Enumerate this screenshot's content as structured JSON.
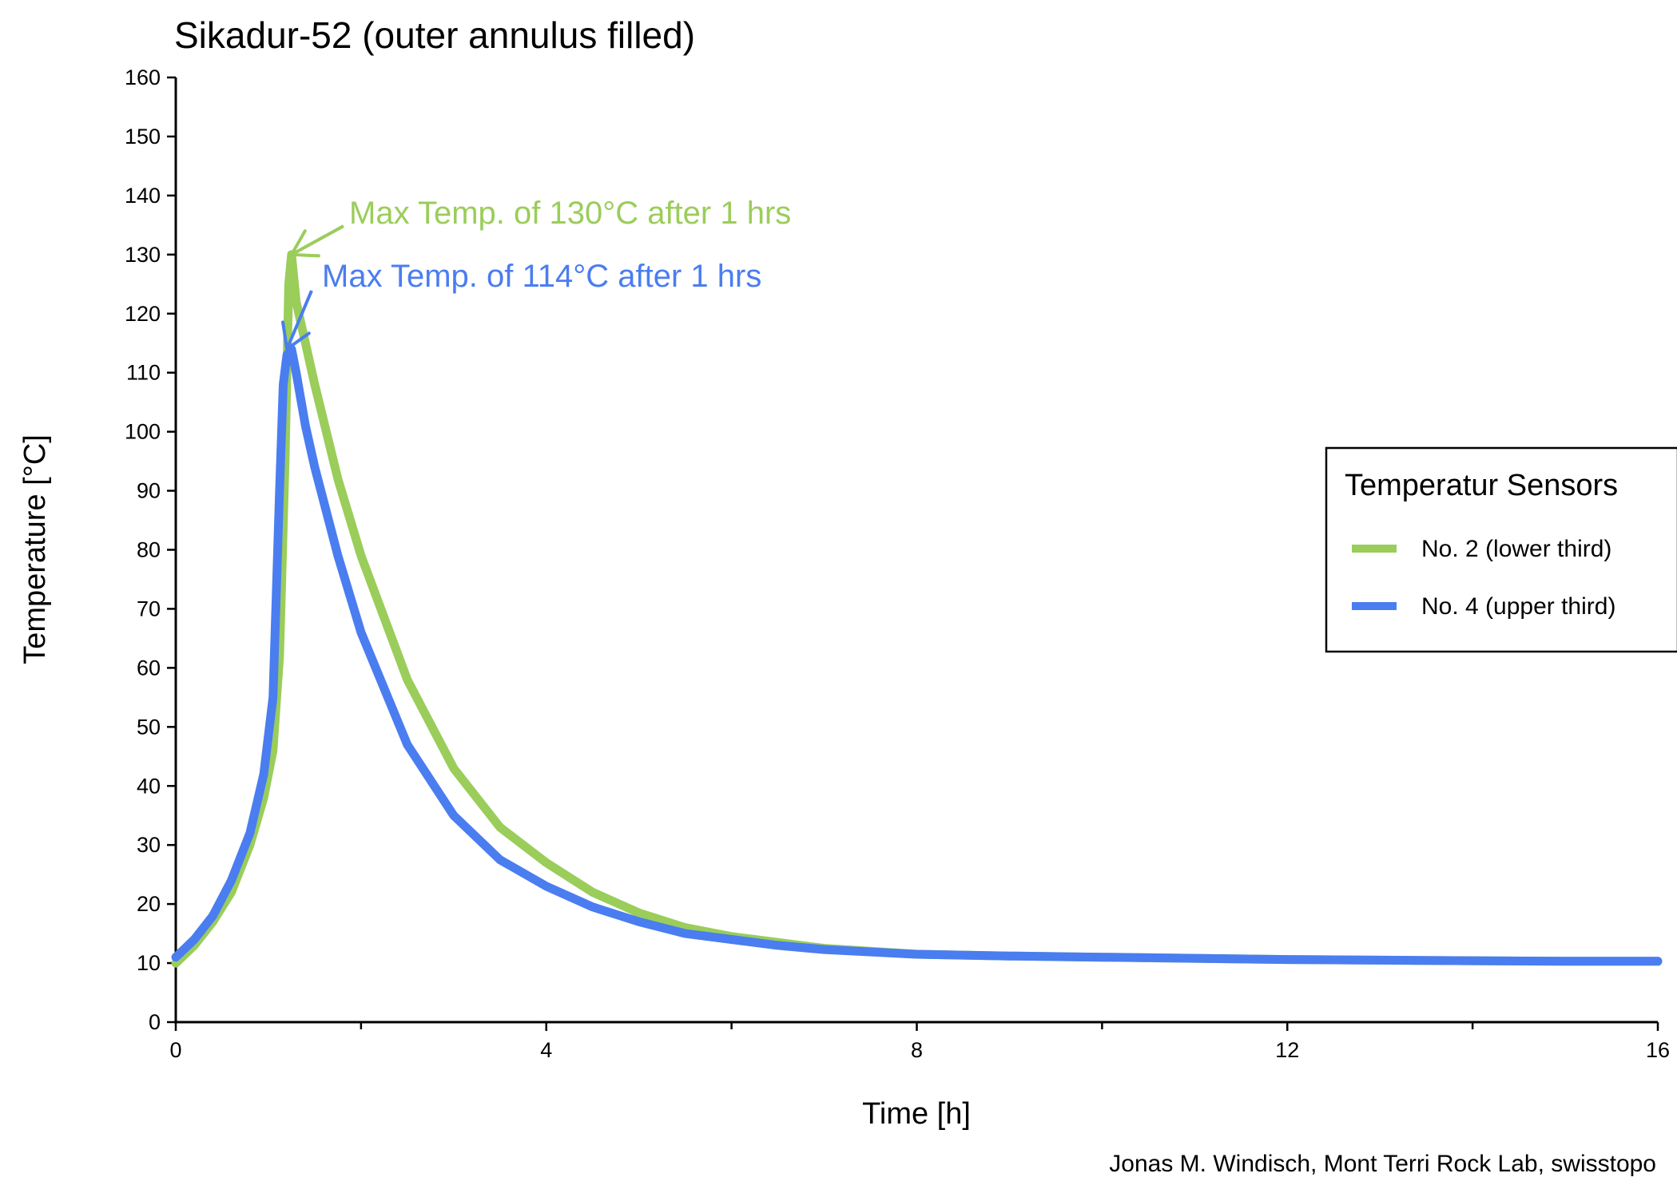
{
  "chart_data": {
    "type": "line",
    "title": "Sikadur-52 (outer annulus filled)",
    "xlabel": "Time [h]",
    "ylabel": "Temperature [°C]",
    "xlim": [
      0,
      16
    ],
    "ylim": [
      0,
      160
    ],
    "x_ticks": [
      0,
      4,
      8,
      12,
      16
    ],
    "x_minor_ticks": [
      2,
      6,
      10,
      14
    ],
    "y_ticks": [
      0,
      10,
      20,
      30,
      40,
      50,
      60,
      70,
      80,
      90,
      100,
      110,
      120,
      130,
      140,
      150,
      160
    ],
    "grid": false,
    "legend": {
      "title": "Temperatur Sensors",
      "placement": "right"
    },
    "series": [
      {
        "name": "No. 2 (lower third)",
        "color": "#9ACD5A",
        "x": [
          0,
          0.2,
          0.4,
          0.6,
          0.8,
          0.95,
          1.05,
          1.12,
          1.18,
          1.22,
          1.25,
          1.3,
          1.4,
          1.5,
          1.75,
          2.0,
          2.5,
          3.0,
          3.5,
          4.0,
          4.5,
          5.0,
          5.5,
          6.0,
          6.5,
          7.0,
          8.0,
          9.0,
          10.0,
          11.0,
          12.0,
          13.0,
          14.0,
          15.0,
          16.0
        ],
        "y": [
          10,
          13,
          17,
          22,
          30,
          38,
          46,
          62,
          95,
          125,
          130,
          122,
          115,
          108,
          92,
          79,
          58,
          43,
          33,
          27,
          22,
          18.5,
          16,
          14.5,
          13.5,
          12.5,
          11.5,
          11.2,
          11,
          10.8,
          10.6,
          10.5,
          10.4,
          10.3,
          10.3
        ]
      },
      {
        "name": "No. 4 (upper third)",
        "color": "#4A7DF0",
        "x": [
          0,
          0.2,
          0.4,
          0.6,
          0.8,
          0.95,
          1.05,
          1.12,
          1.16,
          1.2,
          1.25,
          1.3,
          1.4,
          1.5,
          1.75,
          2.0,
          2.5,
          3.0,
          3.5,
          4.0,
          4.5,
          5.0,
          5.5,
          6.0,
          6.5,
          7.0,
          8.0,
          9.0,
          10.0,
          11.0,
          12.0,
          13.0,
          14.0,
          15.0,
          16.0
        ],
        "y": [
          11,
          14,
          18,
          24,
          32,
          42,
          55,
          90,
          108,
          113,
          114,
          110,
          101,
          94,
          79,
          66,
          47,
          35,
          27.5,
          23,
          19.5,
          17,
          15,
          14,
          13,
          12.3,
          11.5,
          11.2,
          11,
          10.8,
          10.6,
          10.5,
          10.4,
          10.3,
          10.3
        ]
      }
    ],
    "annotations": [
      {
        "text": "Max Temp. of 130°C after 1 hrs",
        "series": 0,
        "x": 1.25,
        "y": 130
      },
      {
        "text": "Max Temp. of 114°C after 1 hrs",
        "series": 1,
        "x": 1.2,
        "y": 114
      }
    ],
    "credit": "Jonas M. Windisch, Mont Terri Rock Lab, swisstopo"
  }
}
